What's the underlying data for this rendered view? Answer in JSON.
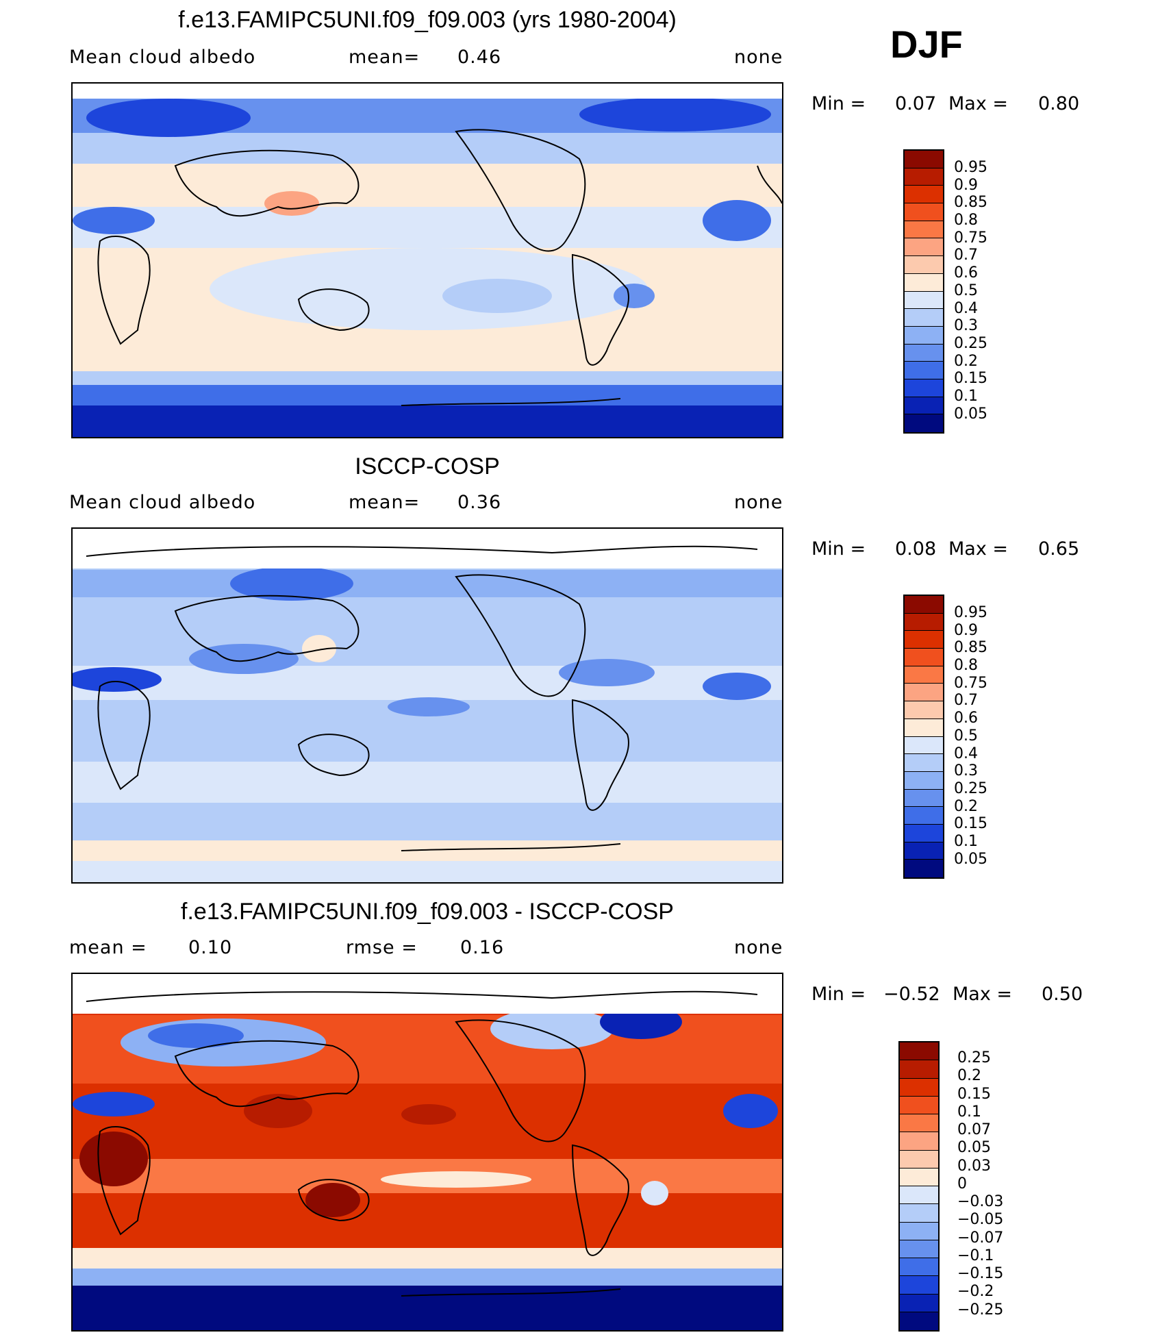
{
  "season": "DJF",
  "panels": [
    {
      "title": "f.e13.FAMIPC5UNI.f09_f09.003 (yrs 1980-2004)",
      "left_label": "Mean cloud albedo",
      "mid_label": "mean=",
      "mid_value": "0.46",
      "right_label": "none",
      "min_label": "Min =",
      "min_value": "0.07",
      "max_label": "Max =",
      "max_value": "0.80",
      "colorbar_labels": [
        "0.95",
        "0.9",
        "0.85",
        "0.8",
        "0.75",
        "0.7",
        "0.6",
        "0.5",
        "0.4",
        "0.3",
        "0.25",
        "0.2",
        "0.15",
        "0.1",
        "0.05"
      ]
    },
    {
      "title": "ISCCP-COSP",
      "left_label": "Mean cloud albedo",
      "mid_label": "mean=",
      "mid_value": "0.36",
      "right_label": "none",
      "min_label": "Min =",
      "min_value": "0.08",
      "max_label": "Max =",
      "max_value": "0.65",
      "colorbar_labels": [
        "0.95",
        "0.9",
        "0.85",
        "0.8",
        "0.75",
        "0.7",
        "0.6",
        "0.5",
        "0.4",
        "0.3",
        "0.25",
        "0.2",
        "0.15",
        "0.1",
        "0.05"
      ]
    },
    {
      "title": "f.e13.FAMIPC5UNI.f09_f09.003 - ISCCP-COSP",
      "left_label": "mean =",
      "left_value": "0.10",
      "mid_label": "rmse =",
      "mid_value": "0.16",
      "right_label": "none",
      "min_label": "Min =",
      "min_value": "−0.52",
      "max_label": "Max =",
      "max_value": "0.50",
      "colorbar_labels": [
        "0.25",
        "0.2",
        "0.15",
        "0.1",
        "0.07",
        "0.05",
        "0.03",
        "0",
        "−0.03",
        "−0.05",
        "−0.07",
        "−0.1",
        "−0.15",
        "−0.2",
        "−0.25"
      ]
    }
  ],
  "colorbar_colors": [
    "#8b0a00",
    "#b71c00",
    "#dc3000",
    "#f0501e",
    "#fa7845",
    "#fca482",
    "#fccaae",
    "#fdebd8",
    "#dbe7fa",
    "#b4cdf8",
    "#8db1f4",
    "#6791ee",
    "#3f6ee8",
    "#1d45db",
    "#0922b4",
    "#000a7f"
  ]
}
